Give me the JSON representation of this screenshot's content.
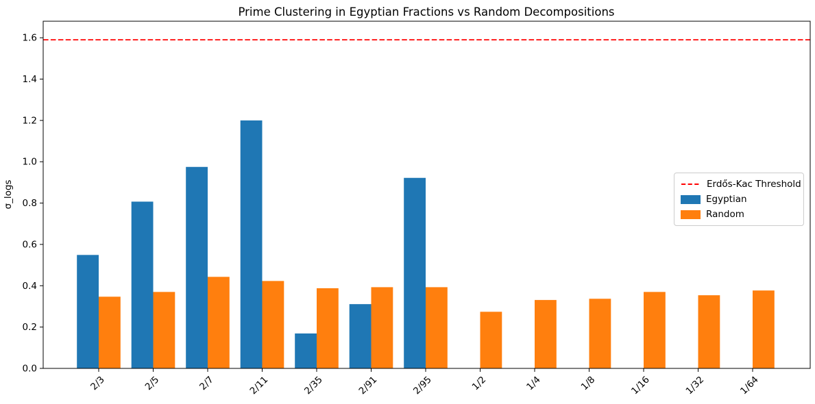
{
  "chart_data": {
    "type": "bar",
    "title": "Prime Clustering in Egyptian Fractions vs Random Decompositions",
    "xlabel": "",
    "ylabel": "σ_logs",
    "categories": [
      "2/3",
      "2/5",
      "2/7",
      "2/11",
      "2/35",
      "2/91",
      "2/95",
      "1/2",
      "1/4",
      "1/8",
      "1/16",
      "1/32",
      "1/64"
    ],
    "series": [
      {
        "name": "Egyptian",
        "color": "#1f77b4",
        "values": [
          0.549,
          0.807,
          0.975,
          1.2,
          0.169,
          0.311,
          0.922,
          0.0,
          0.0,
          0.0,
          0.0,
          0.0,
          0.0
        ]
      },
      {
        "name": "Random",
        "color": "#ff7f0e",
        "values": [
          0.347,
          0.37,
          0.443,
          0.423,
          0.388,
          0.393,
          0.393,
          0.274,
          0.331,
          0.337,
          0.37,
          0.354,
          0.377
        ]
      }
    ],
    "threshold": {
      "label": "Erdős-Kac Threshold",
      "value": 1.59,
      "color": "#ff0000",
      "linestyle": "dashed"
    },
    "ylim": [
      0,
      1.68
    ],
    "yticks": [
      0.0,
      0.2,
      0.4,
      0.6,
      0.8,
      1.0,
      1.2,
      1.4,
      1.6
    ],
    "xtick_rotation": 45,
    "grid": false,
    "legend_position": "center right",
    "axis_color": "#000000"
  }
}
